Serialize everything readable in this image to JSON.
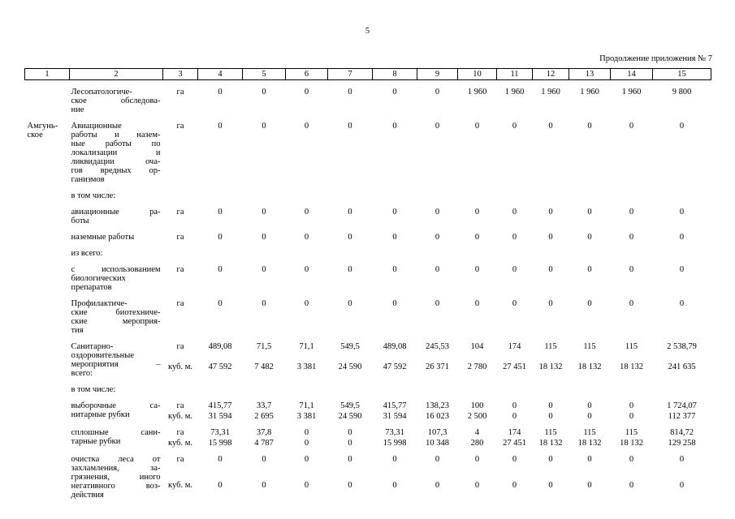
{
  "page": {
    "number": "5",
    "continuation_note": "Продолжение приложения № 7"
  },
  "table": {
    "column_numbers": [
      "1",
      "2",
      "3",
      "4",
      "5",
      "6",
      "7",
      "8",
      "9",
      "10",
      "11",
      "12",
      "13",
      "14",
      "15"
    ],
    "groups": [
      {
        "region_lines": [],
        "label_lines": [
          "Лесопатологиче-",
          "ское обследова-",
          "ние"
        ],
        "lines": [
          {
            "unit": "га",
            "values": [
              "0",
              "0",
              "0",
              "0",
              "0",
              "0",
              "1 960",
              "1 960",
              "1 960",
              "1 960",
              "1 960",
              "9 800"
            ]
          }
        ]
      },
      {
        "region_lines": [
          "Амгунь-",
          "ское"
        ],
        "label_lines": [
          "Авиационные",
          "работы и назем-",
          "ные работы по",
          "локализации и",
          "ликвидации оча-",
          "гов вредных ор-",
          "ганизмов"
        ],
        "lines": [
          {
            "unit": "га",
            "values": [
              "0",
              "0",
              "0",
              "0",
              "0",
              "0",
              "0",
              "0",
              "0",
              "0",
              "0",
              "0"
            ]
          }
        ]
      },
      {
        "region_lines": [],
        "label_lines": [
          "в том числе:"
        ],
        "lines": []
      },
      {
        "region_lines": [],
        "label_lines": [
          "авиационные ра-",
          "боты"
        ],
        "lines": [
          {
            "unit": "га",
            "values": [
              "0",
              "0",
              "0",
              "0",
              "0",
              "0",
              "0",
              "0",
              "0",
              "0",
              "0",
              "0"
            ]
          }
        ]
      },
      {
        "region_lines": [],
        "label_lines": [
          "наземные работы"
        ],
        "lines": [
          {
            "unit": "га",
            "values": [
              "0",
              "0",
              "0",
              "0",
              "0",
              "0",
              "0",
              "0",
              "0",
              "0",
              "0",
              "0"
            ]
          }
        ]
      },
      {
        "region_lines": [],
        "label_lines": [
          "из всего:"
        ],
        "lines": []
      },
      {
        "region_lines": [],
        "label_lines": [
          "с использованием",
          "биологических",
          "препаратов"
        ],
        "lines": [
          {
            "unit": "га",
            "values": [
              "0",
              "0",
              "0",
              "0",
              "0",
              "0",
              "0",
              "0",
              "0",
              "0",
              "0",
              "0"
            ]
          }
        ]
      },
      {
        "region_lines": [],
        "label_lines": [
          "Профилактиче-",
          "ские биотехниче-",
          "ские мероприя-",
          "тия"
        ],
        "lines": [
          {
            "unit": "га",
            "values": [
              "0",
              "0",
              "0",
              "0",
              "0",
              "0",
              "0",
              "0",
              "0",
              "0",
              "0",
              "0"
            ]
          }
        ]
      },
      {
        "region_lines": [],
        "label_lines": [
          "Санитарно-",
          "оздоровительные",
          "мероприятия –",
          "всего:"
        ],
        "lines": [
          {
            "unit": "га",
            "values": [
              "489,08",
              "71,5",
              "71,1",
              "549,5",
              "489,08",
              "245,53",
              "104",
              "174",
              "115",
              "115",
              "115",
              "2 538,79"
            ]
          },
          {
            "unit": "куб. м.",
            "values": [
              "47 592",
              "7 482",
              "3 381",
              "24 590",
              "47 592",
              "26 371",
              "2 780",
              "27 451",
              "18 132",
              "18 132",
              "18 132",
              "241 635"
            ]
          }
        ]
      },
      {
        "region_lines": [],
        "label_lines": [
          "в том числе:"
        ],
        "lines": []
      },
      {
        "region_lines": [],
        "label_lines": [
          "выборочные са-",
          "нитарные рубки"
        ],
        "lines": [
          {
            "unit": "га",
            "values": [
              "415,77",
              "33,7",
              "71,1",
              "549,5",
              "415,77",
              "138,23",
              "100",
              "0",
              "0",
              "0",
              "0",
              "1 724,07"
            ]
          },
          {
            "unit": "куб. м.",
            "values": [
              "31 594",
              "2 695",
              "3 381",
              "24 590",
              "31 594",
              "16 023",
              "2 500",
              "0",
              "0",
              "0",
              "0",
              "112 377"
            ]
          }
        ]
      },
      {
        "region_lines": [],
        "label_lines": [
          "сплошные сани-",
          "тарные рубки"
        ],
        "lines": [
          {
            "unit": "га",
            "values": [
              "73,31",
              "37,8",
              "0",
              "0",
              "73,31",
              "107,3",
              "4",
              "174",
              "115",
              "115",
              "115",
              "814,72"
            ]
          },
          {
            "unit": "куб. м.",
            "values": [
              "15 998",
              "4 787",
              "0",
              "0",
              "15 998",
              "10 348",
              "280",
              "27 451",
              "18 132",
              "18 132",
              "18 132",
              "129 258"
            ]
          }
        ]
      },
      {
        "region_lines": [],
        "label_lines": [
          "очистка леса от",
          "захламления, за-",
          "грязнения, иного",
          "негативного воз-",
          "действия"
        ],
        "lines": [
          {
            "unit": "га",
            "values": [
              "0",
              "0",
              "0",
              "0",
              "0",
              "0",
              "0",
              "0",
              "0",
              "0",
              "0",
              "0"
            ]
          },
          {
            "unit": "куб. м.",
            "values": [
              "0",
              "0",
              "0",
              "0",
              "0",
              "0",
              "0",
              "0",
              "0",
              "0",
              "0",
              "0"
            ]
          }
        ]
      }
    ]
  }
}
